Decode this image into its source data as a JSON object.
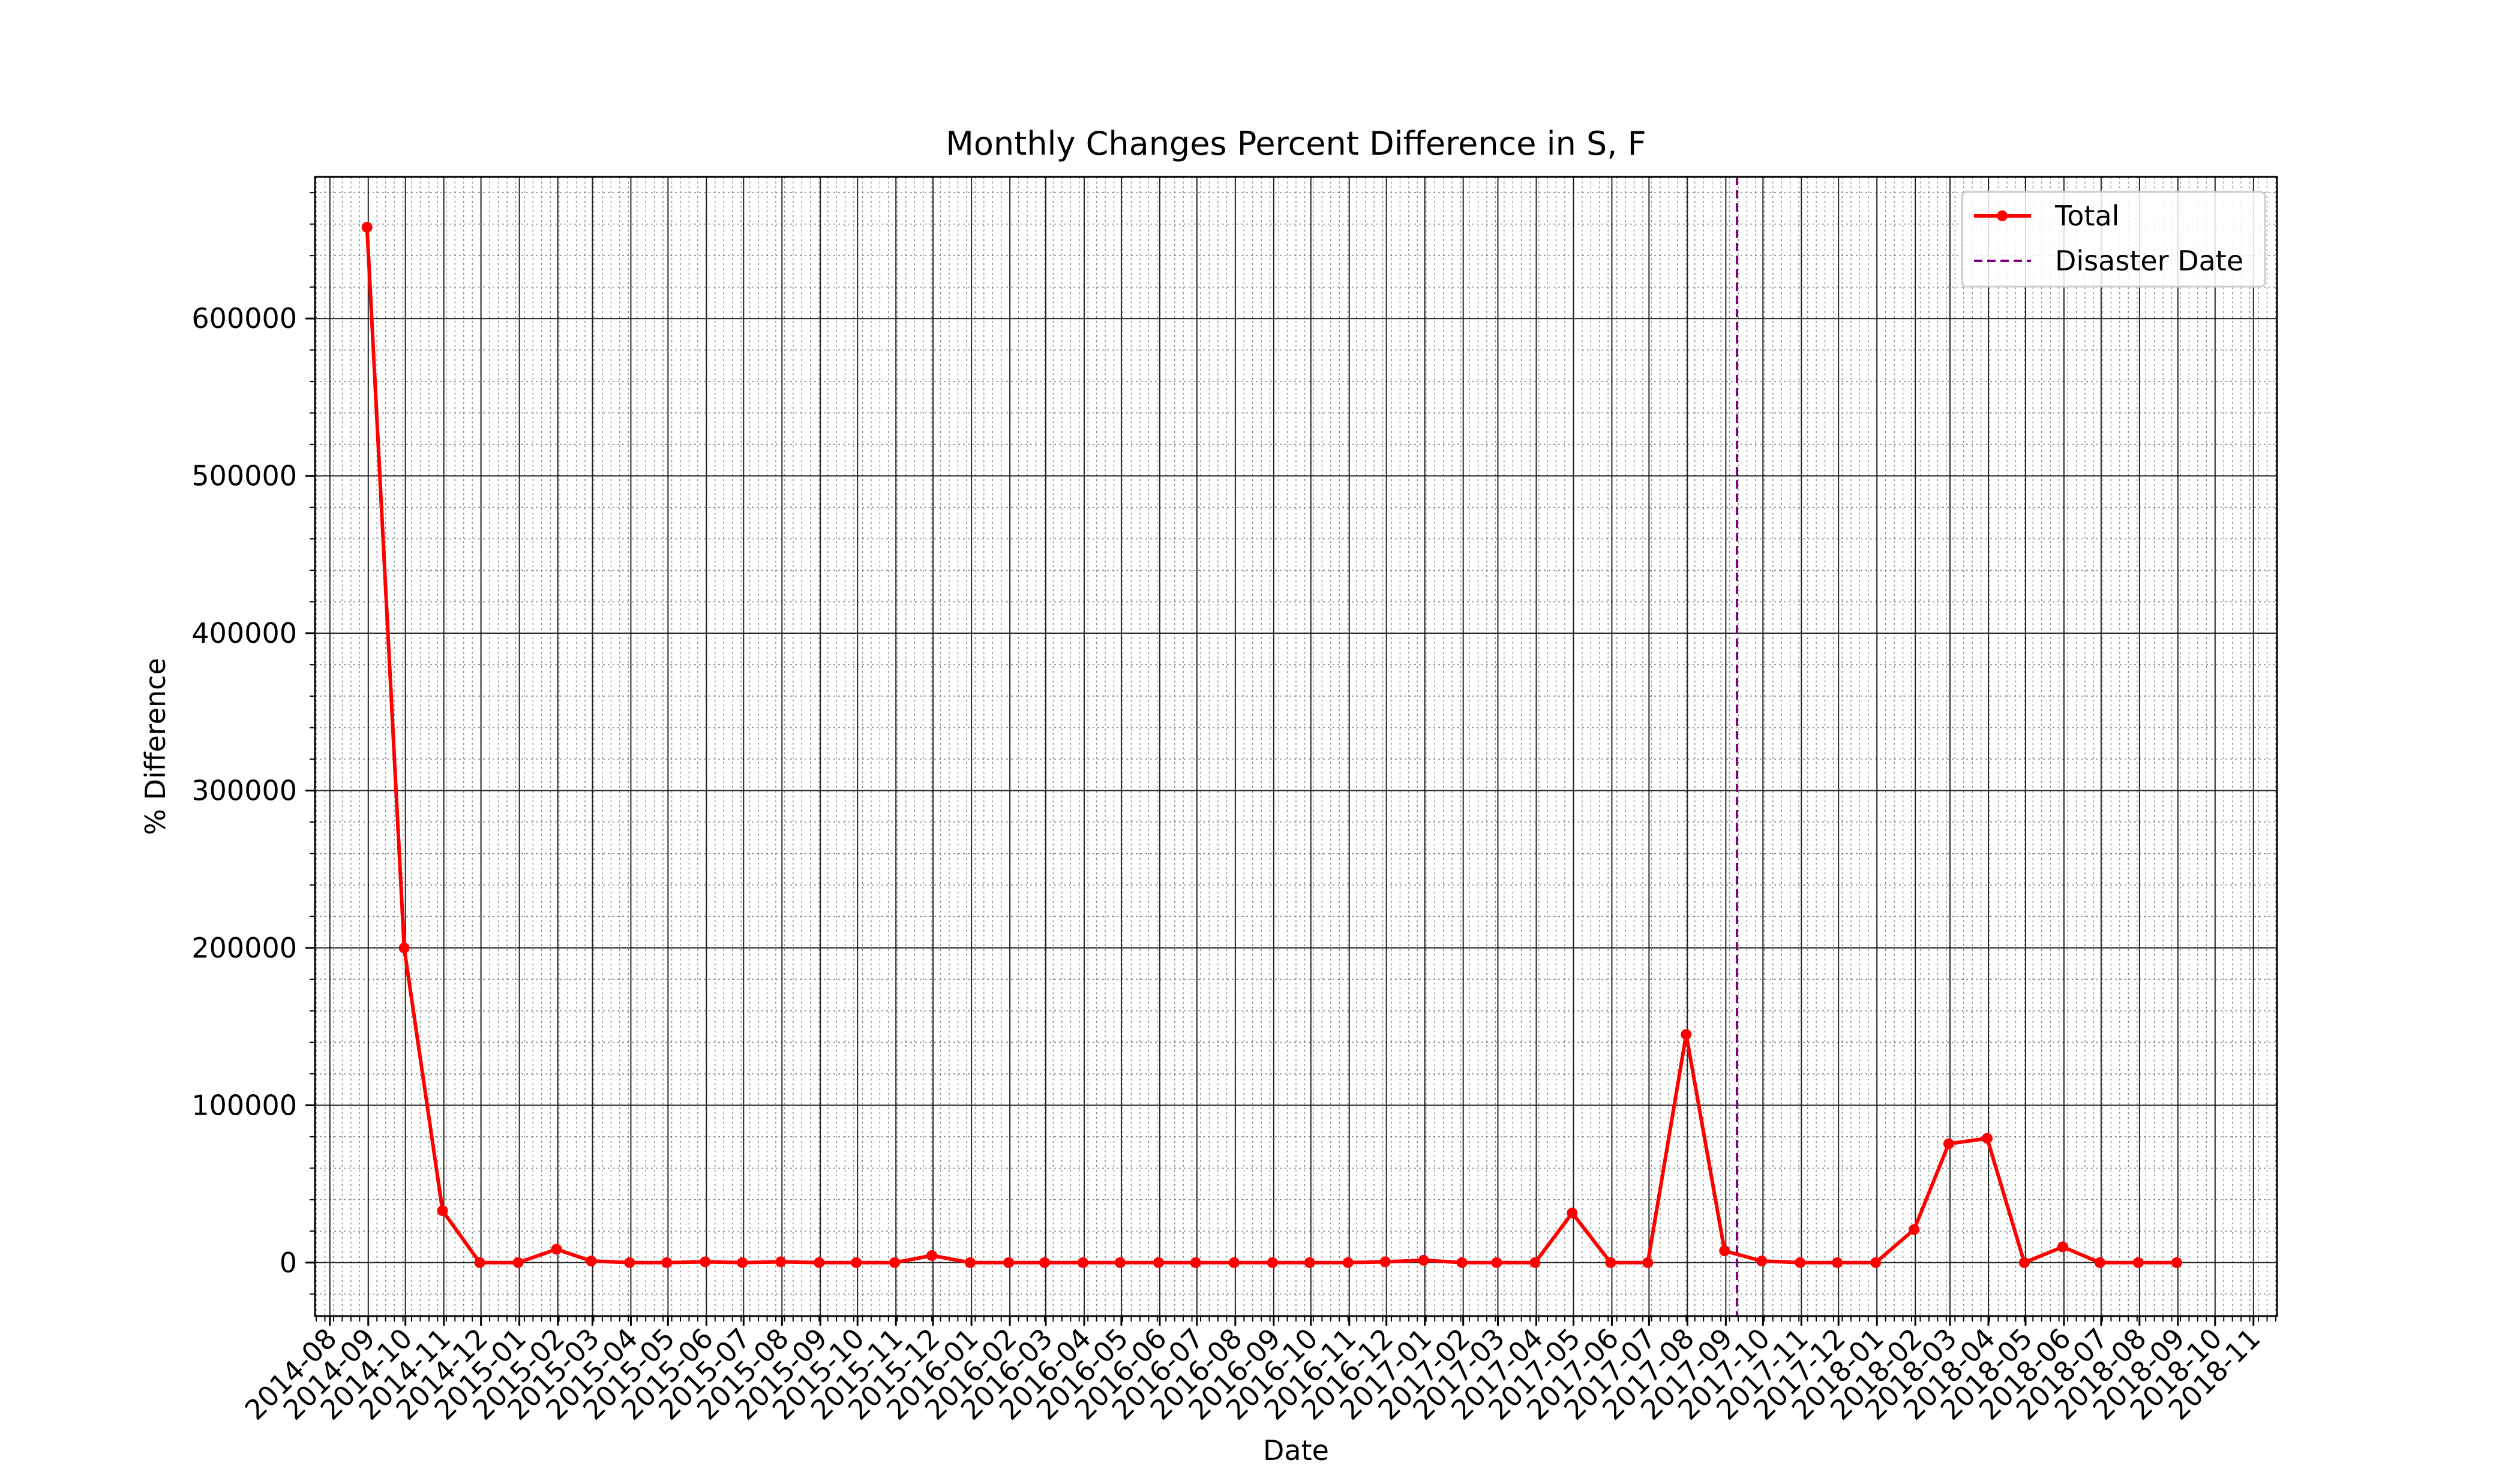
{
  "chart_data": {
    "type": "line",
    "title": "Monthly Changes Percent Difference in S, F",
    "xlabel": "Date",
    "ylabel": "% Difference",
    "x_ticks": [
      "2014-08",
      "2014-09",
      "2014-10",
      "2014-11",
      "2014-12",
      "2015-01",
      "2015-02",
      "2015-03",
      "2015-04",
      "2015-05",
      "2015-06",
      "2015-07",
      "2015-08",
      "2015-09",
      "2015-10",
      "2015-11",
      "2015-12",
      "2016-01",
      "2016-02",
      "2016-03",
      "2016-04",
      "2016-05",
      "2016-06",
      "2016-07",
      "2016-08",
      "2016-09",
      "2016-10",
      "2016-11",
      "2016-12",
      "2017-01",
      "2017-02",
      "2017-03",
      "2017-04",
      "2017-05",
      "2017-06",
      "2017-07",
      "2017-08",
      "2017-09",
      "2017-10",
      "2017-11",
      "2017-12",
      "2018-01",
      "2018-02",
      "2018-03",
      "2018-04",
      "2018-05",
      "2018-06",
      "2018-07",
      "2018-08",
      "2018-09",
      "2018-10",
      "2018-11"
    ],
    "y_ticks": [
      0,
      100000,
      200000,
      300000,
      400000,
      500000,
      600000
    ],
    "y_tick_labels": [
      "0",
      "100000",
      "200000",
      "300000",
      "400000",
      "500000",
      "600000"
    ],
    "xlim": [
      "2014-07-20",
      "2018-11-20"
    ],
    "ylim": [
      -34000,
      690000
    ],
    "grid": true,
    "minor_grid": true,
    "legend_position": "top-right",
    "series": [
      {
        "name": "Total",
        "color": "#ff0000",
        "marker": "circle",
        "x": [
          "2014-08-31",
          "2014-09-30",
          "2014-10-31",
          "2014-11-30",
          "2014-12-31",
          "2015-01-31",
          "2015-02-28",
          "2015-03-31",
          "2015-04-30",
          "2015-05-31",
          "2015-06-30",
          "2015-07-31",
          "2015-08-31",
          "2015-09-30",
          "2015-10-31",
          "2015-11-30",
          "2015-12-31",
          "2016-01-31",
          "2016-02-29",
          "2016-03-31",
          "2016-04-30",
          "2016-05-31",
          "2016-06-30",
          "2016-07-31",
          "2016-08-31",
          "2016-09-30",
          "2016-10-31",
          "2016-11-30",
          "2016-12-31",
          "2017-01-31",
          "2017-02-28",
          "2017-03-31",
          "2017-04-30",
          "2017-05-31",
          "2017-06-30",
          "2017-07-31",
          "2017-08-31",
          "2017-09-30",
          "2017-10-31",
          "2017-11-30",
          "2017-12-31",
          "2018-01-31",
          "2018-02-28",
          "2018-03-31",
          "2018-04-30",
          "2018-05-31",
          "2018-06-30",
          "2018-07-31",
          "2018-08-31"
        ],
        "values": [
          658000,
          200000,
          33000,
          0,
          0,
          8500,
          1000,
          0,
          0,
          500,
          0,
          500,
          0,
          0,
          0,
          4500,
          0,
          0,
          0,
          0,
          0,
          0,
          0,
          0,
          0,
          0,
          0,
          500,
          1500,
          0,
          0,
          0,
          31500,
          0,
          0,
          145000,
          7500,
          1000,
          0,
          0,
          0,
          21000,
          75500,
          79000,
          0,
          10000,
          0,
          0,
          0
        ]
      },
      {
        "name": "Disaster Date",
        "color": "#800080",
        "style": "dashed",
        "x": "2017-09-10"
      }
    ]
  }
}
